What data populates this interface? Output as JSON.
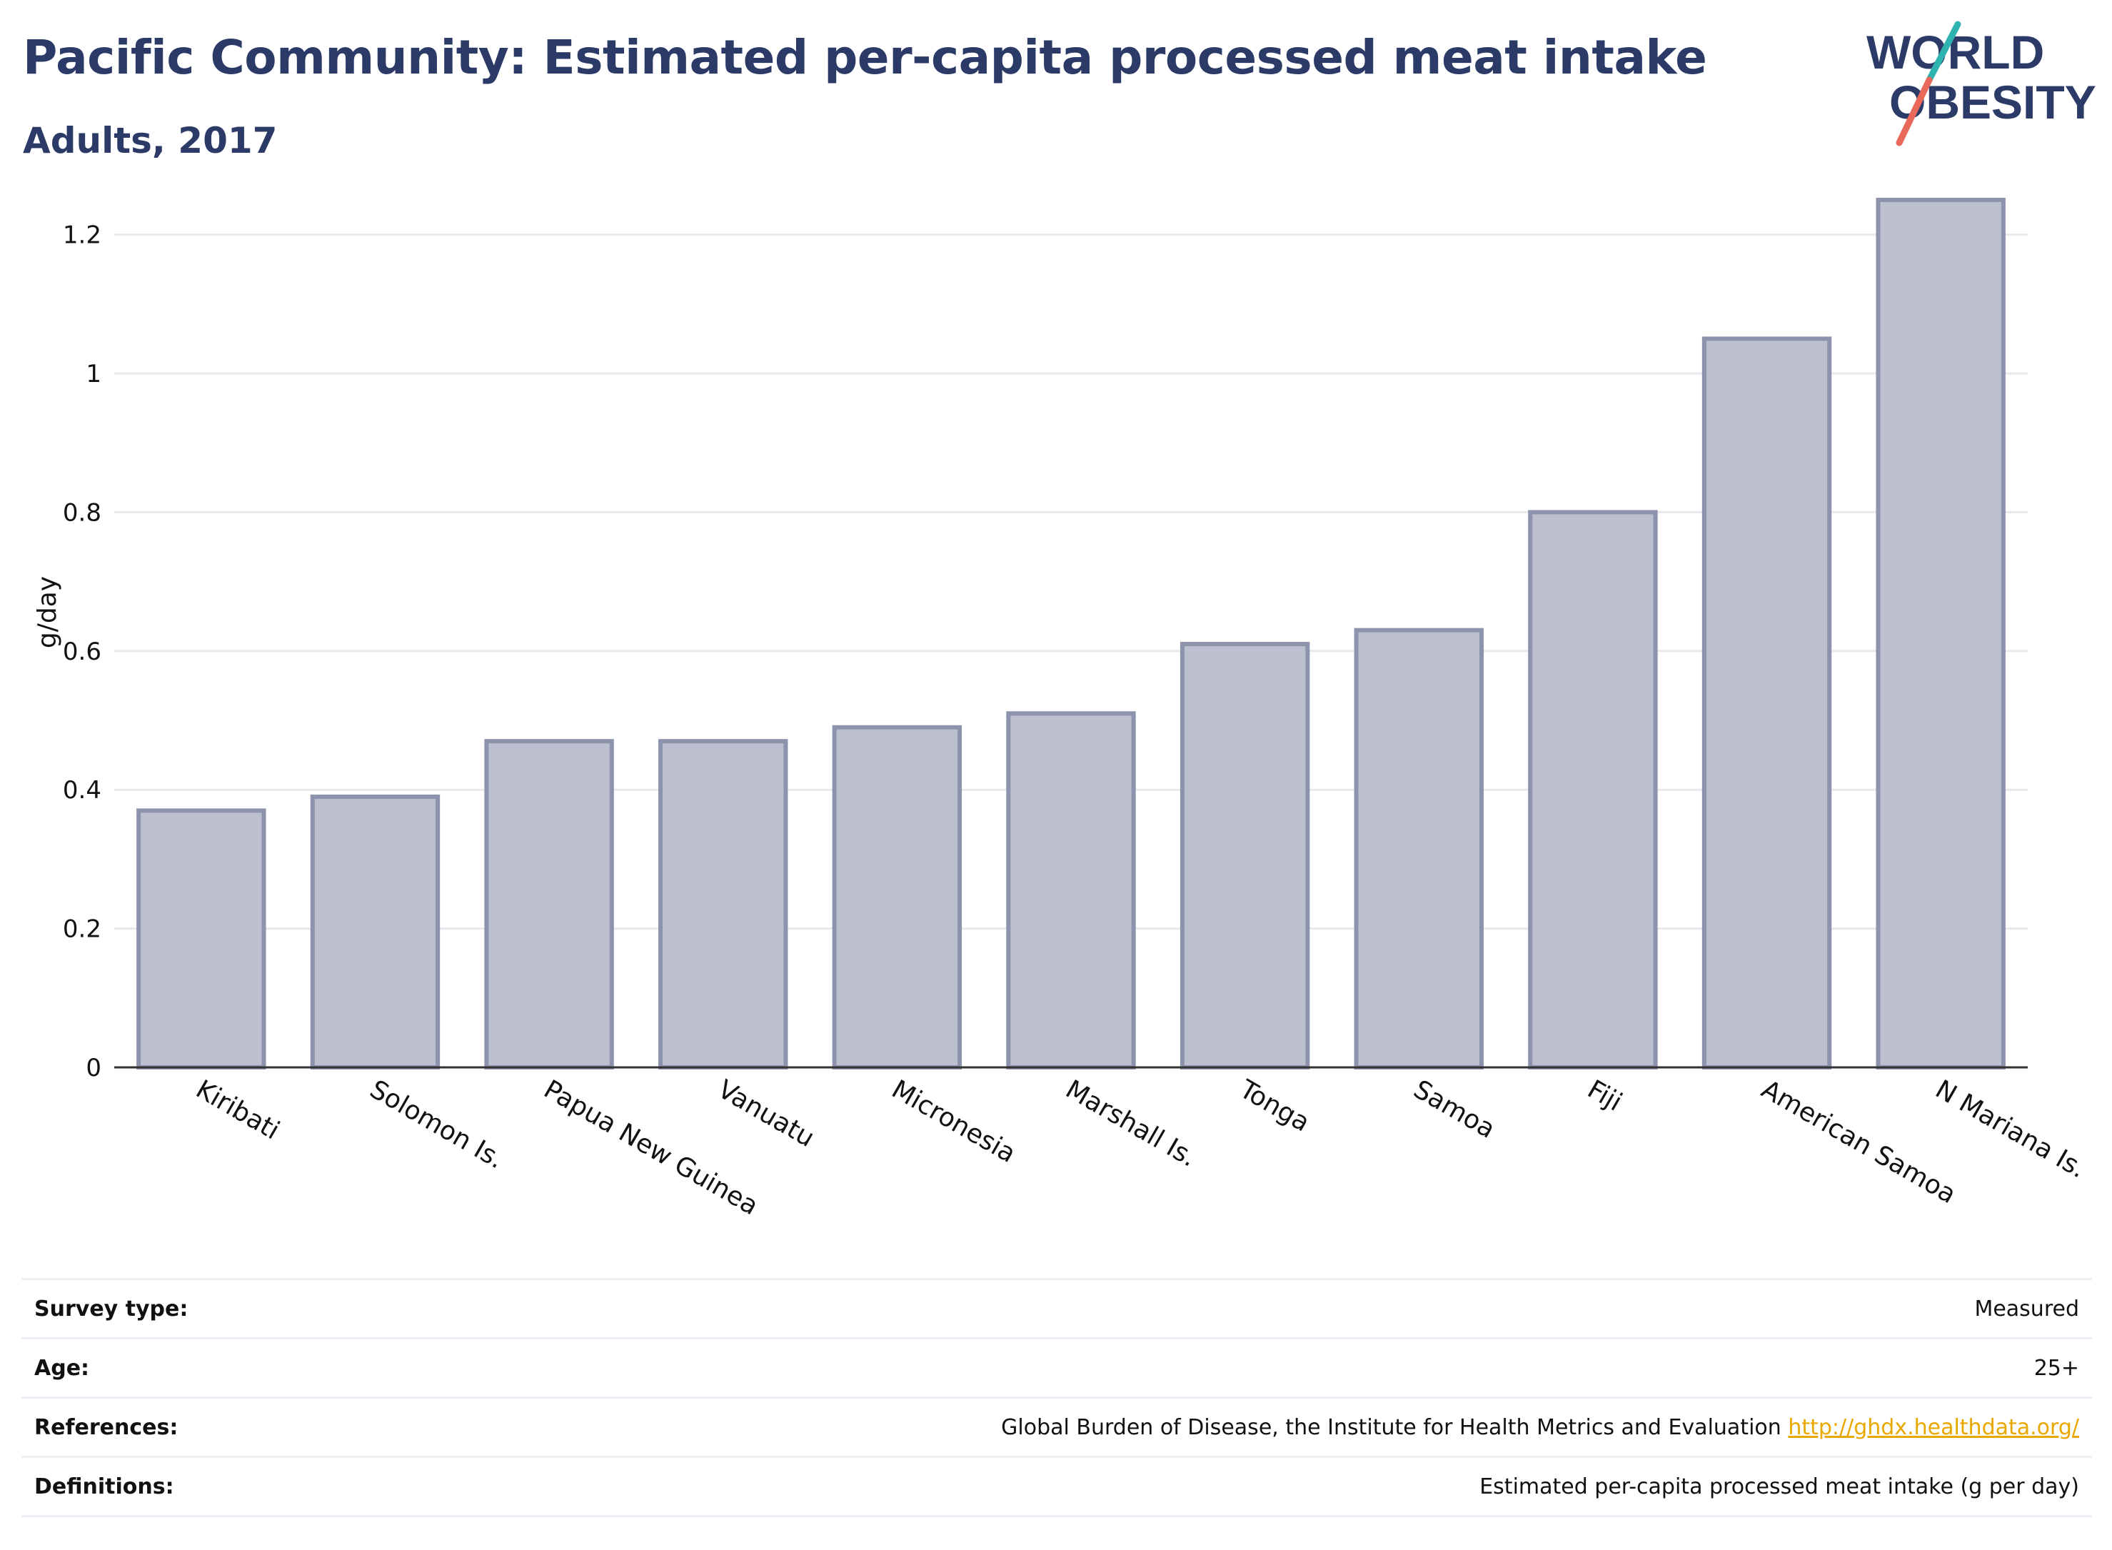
{
  "header": {
    "title": "Pacific Community: Estimated per-capita processed meat intake",
    "subtitle": "Adults, 2017"
  },
  "logo": {
    "line1": "WORLD",
    "line2": "OBESITY",
    "colors": {
      "text": "#2b3a67",
      "slash_top": "#2fb3b1",
      "slash_bottom": "#e8685a"
    }
  },
  "chart_data": {
    "type": "bar",
    "ylabel": "g/day",
    "ylim": [
      0,
      1.25
    ],
    "yticks": [
      0,
      0.2,
      0.4,
      0.6,
      0.8,
      1,
      1.2
    ],
    "ytick_labels": [
      "0",
      "0.2",
      "0.4",
      "0.6",
      "0.8",
      "1",
      "1.2"
    ],
    "categories": [
      "Kiribati",
      "Solomon Is.",
      "Papua New Guinea",
      "Vanuatu",
      "Micronesia",
      "Marshall Is.",
      "Tonga",
      "Samoa",
      "Fiji",
      "American Samoa",
      "N Mariana Is."
    ],
    "values": [
      0.37,
      0.39,
      0.47,
      0.47,
      0.49,
      0.51,
      0.61,
      0.63,
      0.8,
      1.05,
      1.25
    ],
    "grid": true,
    "colors": {
      "bar_fill": "#bcc0ce",
      "bar_stroke": "#8d93ad",
      "grid": "#e8e8ee",
      "axis": "#333333"
    }
  },
  "details": {
    "rows": [
      {
        "label": "Survey type:",
        "value": "Measured",
        "link": ""
      },
      {
        "label": "Age:",
        "value": "25+",
        "link": ""
      },
      {
        "label": "References:",
        "value": "Global Burden of Disease, the Institute for Health Metrics and Evaluation ",
        "link": "http://ghdx.healthdata.org/"
      },
      {
        "label": "Definitions:",
        "value": "Estimated per-capita processed meat intake (g per day)",
        "link": ""
      }
    ]
  }
}
